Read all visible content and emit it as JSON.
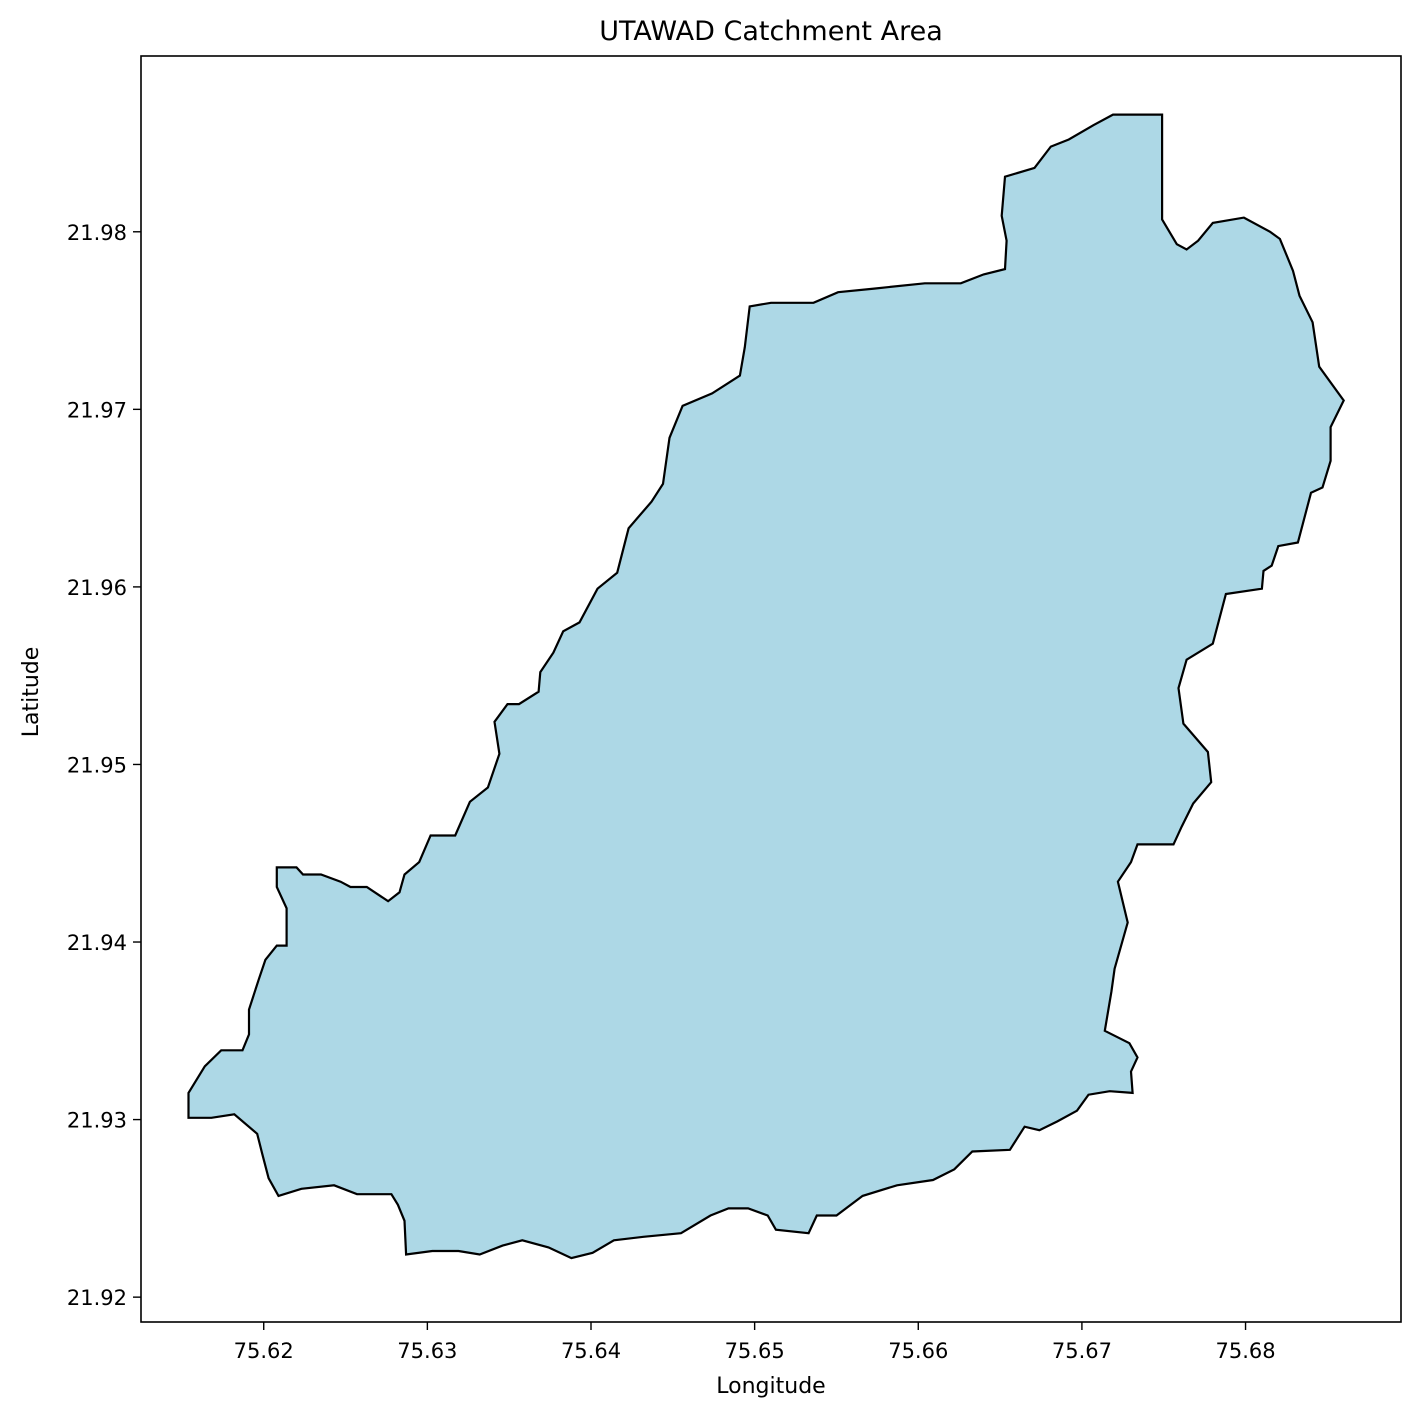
{
  "figure": {
    "title": "UTAWAD Catchment Area",
    "xlabel": "Longitude",
    "ylabel": "Latitude"
  },
  "chart_data": {
    "type": "map-polygon",
    "title": "UTAWAD Catchment Area",
    "xlabel": "Longitude",
    "ylabel": "Latitude",
    "xlim": [
      75.6125,
      75.6895
    ],
    "ylim": [
      21.9186,
      21.9899
    ],
    "x_ticks": [
      75.62,
      75.63,
      75.64,
      75.65,
      75.66,
      75.67,
      75.68
    ],
    "x_tick_labels": [
      "75.62",
      "75.63",
      "75.64",
      "75.65",
      "75.66",
      "75.67",
      "75.68"
    ],
    "y_ticks": [
      21.92,
      21.93,
      21.94,
      21.95,
      21.96,
      21.97,
      21.98
    ],
    "y_tick_labels": [
      "21.92",
      "21.93",
      "21.94",
      "21.95",
      "21.96",
      "21.97",
      "21.98"
    ],
    "grid": false,
    "fill_color": "#add8e6",
    "edge_color": "#000000",
    "boundary": [
      [
        75.6154,
        21.9301
      ],
      [
        75.6154,
        21.9315
      ],
      [
        75.6164,
        21.933
      ],
      [
        75.6174,
        21.9339
      ],
      [
        75.6187,
        21.9339
      ],
      [
        75.6191,
        21.9348
      ],
      [
        75.6191,
        21.9362
      ],
      [
        75.6197,
        21.9379
      ],
      [
        75.6201,
        21.939
      ],
      [
        75.6208,
        21.9398
      ],
      [
        75.6214,
        21.9398
      ],
      [
        75.6214,
        21.9419
      ],
      [
        75.6208,
        21.9431
      ],
      [
        75.6208,
        21.9442
      ],
      [
        75.622,
        21.9442
      ],
      [
        75.6224,
        21.9438
      ],
      [
        75.6235,
        21.9438
      ],
      [
        75.6247,
        21.9434
      ],
      [
        75.6253,
        21.9431
      ],
      [
        75.6263,
        21.9431
      ],
      [
        75.6276,
        21.9423
      ],
      [
        75.6283,
        21.9428
      ],
      [
        75.6286,
        21.9438
      ],
      [
        75.6295,
        21.9445
      ],
      [
        75.6302,
        21.946
      ],
      [
        75.6317,
        21.946
      ],
      [
        75.6326,
        21.9479
      ],
      [
        75.6337,
        21.9487
      ],
      [
        75.6344,
        21.9506
      ],
      [
        75.6341,
        21.9524
      ],
      [
        75.6349,
        21.9534
      ],
      [
        75.6356,
        21.9534
      ],
      [
        75.6368,
        21.9541
      ],
      [
        75.6369,
        21.9552
      ],
      [
        75.6377,
        21.9563
      ],
      [
        75.6383,
        21.9575
      ],
      [
        75.6393,
        21.958
      ],
      [
        75.6404,
        21.9599
      ],
      [
        75.6416,
        21.9608
      ],
      [
        75.6423,
        21.9633
      ],
      [
        75.6437,
        21.9648
      ],
      [
        75.6444,
        21.9658
      ],
      [
        75.6448,
        21.9684
      ],
      [
        75.6456,
        21.9702
      ],
      [
        75.6474,
        21.9709
      ],
      [
        75.6491,
        21.9719
      ],
      [
        75.6494,
        21.9735
      ],
      [
        75.6497,
        21.9758
      ],
      [
        75.651,
        21.976
      ],
      [
        75.6536,
        21.976
      ],
      [
        75.6551,
        21.9766
      ],
      [
        75.6573,
        21.9768
      ],
      [
        75.6604,
        21.9771
      ],
      [
        75.6626,
        21.9771
      ],
      [
        75.664,
        21.9776
      ],
      [
        75.6653,
        21.9779
      ],
      [
        75.6654,
        21.9795
      ],
      [
        75.6651,
        21.9809
      ],
      [
        75.6653,
        21.9831
      ],
      [
        75.6671,
        21.9836
      ],
      [
        75.6681,
        21.9848
      ],
      [
        75.6692,
        21.9852
      ],
      [
        75.6707,
        21.986
      ],
      [
        75.6719,
        21.9866
      ],
      [
        75.6734,
        21.9866
      ],
      [
        75.6749,
        21.9866
      ],
      [
        75.6749,
        21.9807
      ],
      [
        75.6758,
        21.9793
      ],
      [
        75.6764,
        21.979
      ],
      [
        75.6771,
        21.9795
      ],
      [
        75.678,
        21.9805
      ],
      [
        75.6799,
        21.9808
      ],
      [
        75.6815,
        21.98
      ],
      [
        75.6821,
        21.9796
      ],
      [
        75.6829,
        21.9778
      ],
      [
        75.6833,
        21.9764
      ],
      [
        75.6841,
        21.9749
      ],
      [
        75.6845,
        21.9724
      ],
      [
        75.686,
        21.9705
      ],
      [
        75.6852,
        21.969
      ],
      [
        75.6852,
        21.9671
      ],
      [
        75.6847,
        21.9656
      ],
      [
        75.684,
        21.9653
      ],
      [
        75.6832,
        21.9625
      ],
      [
        75.682,
        21.9623
      ],
      [
        75.6816,
        21.9612
      ],
      [
        75.6811,
        21.9609
      ],
      [
        75.681,
        21.9599
      ],
      [
        75.6788,
        21.9596
      ],
      [
        75.678,
        21.9568
      ],
      [
        75.6764,
        21.9559
      ],
      [
        75.6759,
        21.9543
      ],
      [
        75.6762,
        21.9523
      ],
      [
        75.6777,
        21.9507
      ],
      [
        75.6779,
        21.949
      ],
      [
        75.6768,
        21.9478
      ],
      [
        75.6761,
        21.9465
      ],
      [
        75.6756,
        21.9455
      ],
      [
        75.6749,
        21.9455
      ],
      [
        75.6734,
        21.9455
      ],
      [
        75.673,
        21.9445
      ],
      [
        75.6722,
        21.9434
      ],
      [
        75.6728,
        21.9411
      ],
      [
        75.672,
        21.9385
      ],
      [
        75.6718,
        21.9372
      ],
      [
        75.6714,
        21.935
      ],
      [
        75.6729,
        21.9343
      ],
      [
        75.6734,
        21.9335
      ],
      [
        75.673,
        21.9327
      ],
      [
        75.6731,
        21.9315
      ],
      [
        75.6717,
        21.9316
      ],
      [
        75.6704,
        21.9314
      ],
      [
        75.6697,
        21.9305
      ],
      [
        75.6685,
        21.9299
      ],
      [
        75.6674,
        21.9294
      ],
      [
        75.6665,
        21.9296
      ],
      [
        75.6656,
        21.9283
      ],
      [
        75.6633,
        21.9282
      ],
      [
        75.6622,
        21.9272
      ],
      [
        75.6609,
        21.9266
      ],
      [
        75.6587,
        21.9263
      ],
      [
        75.6566,
        21.9257
      ],
      [
        75.655,
        21.9246
      ],
      [
        75.6538,
        21.9246
      ],
      [
        75.6533,
        21.9236
      ],
      [
        75.6513,
        21.9238
      ],
      [
        75.6508,
        21.9246
      ],
      [
        75.6496,
        21.925
      ],
      [
        75.6484,
        21.925
      ],
      [
        75.6473,
        21.9246
      ],
      [
        75.6455,
        21.9236
      ],
      [
        75.6432,
        21.9234
      ],
      [
        75.6414,
        21.9232
      ],
      [
        75.6401,
        21.9225
      ],
      [
        75.6388,
        21.9222
      ],
      [
        75.6374,
        21.9228
      ],
      [
        75.6358,
        21.9232
      ],
      [
        75.6346,
        21.9229
      ],
      [
        75.6332,
        21.9224
      ],
      [
        75.6319,
        21.9226
      ],
      [
        75.6303,
        21.9226
      ],
      [
        75.6287,
        21.9224
      ],
      [
        75.6286,
        21.9243
      ],
      [
        75.6282,
        21.9252
      ],
      [
        75.6278,
        21.9258
      ],
      [
        75.6257,
        21.9258
      ],
      [
        75.6243,
        21.9263
      ],
      [
        75.6223,
        21.9261
      ],
      [
        75.6209,
        21.9257
      ],
      [
        75.6203,
        21.9267
      ],
      [
        75.6199,
        21.9281
      ],
      [
        75.6196,
        21.9292
      ],
      [
        75.6182,
        21.9303
      ],
      [
        75.6168,
        21.9301
      ]
    ]
  }
}
